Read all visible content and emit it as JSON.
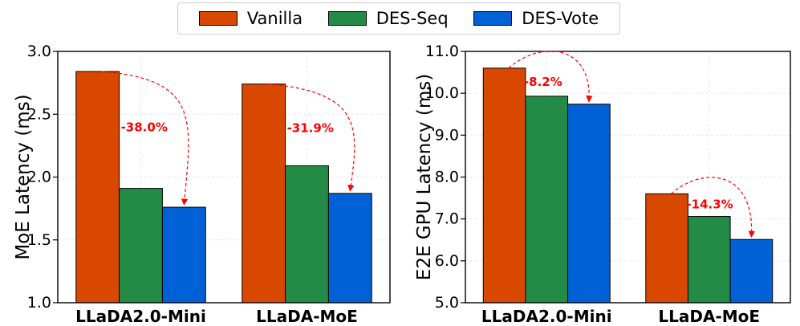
{
  "legend": [
    {
      "name": "Vanilla",
      "color": "#d94801"
    },
    {
      "name": "DES-Seq",
      "color": "#238b45"
    },
    {
      "name": "DES-Vote",
      "color": "#0060d6"
    }
  ],
  "chart_data": [
    {
      "type": "bar",
      "categories": [
        "LLaDA2.0-Mini",
        "LLaDA-MoE"
      ],
      "series": [
        {
          "name": "Vanilla",
          "values": [
            2.84,
            2.74
          ]
        },
        {
          "name": "DES-Seq",
          "values": [
            1.91,
            2.09
          ]
        },
        {
          "name": "DES-Vote",
          "values": [
            1.76,
            1.87
          ]
        }
      ],
      "ylabel": "MoE Latency (ms)",
      "ylim": [
        1.0,
        3.0
      ],
      "yticks": [
        "1.0",
        "1.5",
        "2.0",
        "2.5",
        "3.0"
      ],
      "grid": true,
      "annotations": [
        {
          "category": "LLaDA2.0-Mini",
          "text": "-38.0%"
        },
        {
          "category": "LLaDA-MoE",
          "text": "-31.9%"
        }
      ]
    },
    {
      "type": "bar",
      "categories": [
        "LLaDA2.0-Mini",
        "LLaDA-MoE"
      ],
      "series": [
        {
          "name": "Vanilla",
          "values": [
            10.6,
            7.6
          ]
        },
        {
          "name": "DES-Seq",
          "values": [
            9.93,
            7.06
          ]
        },
        {
          "name": "DES-Vote",
          "values": [
            9.74,
            6.51
          ]
        }
      ],
      "ylabel": "E2E GPU Latency (ms)",
      "ylim": [
        5.0,
        11.0
      ],
      "yticks": [
        "5.0",
        "6.0",
        "7.0",
        "8.0",
        "9.0",
        "10.0",
        "11.0"
      ],
      "grid": true,
      "annotations": [
        {
          "category": "LLaDA2.0-Mini",
          "text": "-8.2%"
        },
        {
          "category": "LLaDA-MoE",
          "text": "-14.3%"
        }
      ]
    }
  ]
}
